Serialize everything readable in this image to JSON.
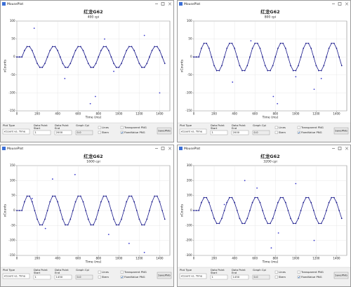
{
  "windows": [
    {
      "title": "MousePlot",
      "chart_data": {
        "type": "line",
        "title": "红龙G62",
        "subtitle": "400 cpi",
        "xlabel": "Time (ms)",
        "ylabel": "xCounts",
        "xlim": [
          0,
          1500
        ],
        "xticks": [
          0,
          200,
          400,
          600,
          800,
          1000,
          1200,
          1400
        ],
        "ylim": [
          -150,
          100
        ],
        "yticks": [
          -150,
          -100,
          -50,
          0,
          50,
          100
        ],
        "grid": true,
        "series": [
          {
            "color": "#1a1a8c",
            "markers": true,
            "x": [
              0,
              25,
              50,
              75,
              100,
              125,
              150,
              175,
              200,
              225,
              250,
              275,
              300,
              325,
              350,
              375,
              400,
              425,
              450,
              475,
              500,
              525,
              550,
              575,
              600,
              625,
              650,
              675,
              700,
              725,
              750,
              775,
              800,
              825,
              850,
              875,
              900,
              925,
              950,
              975,
              1000,
              1025,
              1050,
              1075,
              1100,
              1125,
              1150,
              1175,
              1200,
              1225,
              1250,
              1275,
              1300,
              1325,
              1350,
              1375,
              1400,
              1425,
              1450
            ],
            "values": [
              0,
              0,
              0,
              18,
              29,
              29,
              18,
              0,
              -18,
              -29,
              -29,
              -18,
              0,
              18,
              29,
              29,
              18,
              0,
              -18,
              -29,
              -29,
              -18,
              0,
              18,
              29,
              29,
              18,
              0,
              -18,
              -29,
              -29,
              -18,
              0,
              18,
              29,
              29,
              18,
              0,
              -18,
              -29,
              -29,
              -18,
              0,
              18,
              29,
              29,
              18,
              0,
              -18,
              -29,
              -29,
              -18,
              0,
              18,
              29,
              29,
              18,
              0,
              -18
            ]
          },
          {
            "color": "#3a3acc",
            "markers_only": true,
            "x": [
              170,
              720,
              770,
              1250,
              1400,
              950,
              470,
              860
            ],
            "values": [
              80,
              -130,
              -110,
              60,
              -100,
              -40,
              -60,
              50
            ]
          }
        ]
      },
      "controls": {
        "plot_type_label": "Plot Type",
        "plot_type": "xCount vs. Time",
        "start_label": "Data Point",
        "start_sub": "Start",
        "start": "1",
        "end_label": "Data Point",
        "end_sub": "End",
        "end": "2000",
        "cpi_label": "Graph Cpi",
        "cpi": "0.0",
        "lines": "Lines",
        "stem": "Stem",
        "transparent": "Transparent PNG",
        "fixed": "FixedValue PNG",
        "save": "SavePNG"
      }
    },
    {
      "title": "MousePlot",
      "chart_data": {
        "type": "line",
        "title": "红龙G62",
        "subtitle": "800 cpi",
        "xlabel": "Time (ms)",
        "ylabel": "xCounts",
        "xlim": [
          0,
          1500
        ],
        "xticks": [
          0,
          200,
          400,
          600,
          800,
          1000,
          1200,
          1400
        ],
        "ylim": [
          -150,
          100
        ],
        "yticks": [
          -150,
          -100,
          -50,
          0,
          50,
          100
        ],
        "grid": true,
        "series": [
          {
            "color": "#1a1a8c",
            "markers": true,
            "x": [
              0,
              25,
              50,
              75,
              100,
              125,
              150,
              175,
              200,
              225,
              250,
              275,
              300,
              325,
              350,
              375,
              400,
              425,
              450,
              475,
              500,
              525,
              550,
              575,
              600,
              625,
              650,
              675,
              700,
              725,
              750,
              775,
              800,
              825,
              850,
              875,
              900,
              925,
              950,
              975,
              1000,
              1025,
              1050,
              1075,
              1100,
              1125,
              1150,
              1175,
              1200,
              1225,
              1250,
              1275,
              1300,
              1325,
              1350,
              1375,
              1400,
              1425,
              1450
            ],
            "values": [
              0,
              0,
              0,
              24,
              38,
              38,
              24,
              0,
              -24,
              -38,
              -38,
              -24,
              0,
              24,
              38,
              38,
              24,
              0,
              -24,
              -38,
              -38,
              -24,
              0,
              24,
              38,
              38,
              24,
              0,
              -24,
              -38,
              -38,
              -24,
              0,
              24,
              38,
              38,
              24,
              0,
              -24,
              -38,
              -38,
              -24,
              0,
              24,
              38,
              38,
              24,
              0,
              -24,
              -38,
              -38,
              -24,
              0,
              24,
              38,
              38,
              24,
              0,
              -24
            ]
          },
          {
            "color": "#3a3acc",
            "markers_only": true,
            "x": [
              380,
              780,
              820,
              1180,
              1250,
              1000,
              560
            ],
            "values": [
              -70,
              -110,
              -130,
              -90,
              -60,
              -55,
              45
            ]
          }
        ]
      },
      "controls": {
        "plot_type_label": "Plot Type",
        "plot_type": "xCount vs. Time",
        "start_label": "Data Point",
        "start_sub": "Start",
        "start": "1",
        "end_label": "Data Point",
        "end_sub": "End",
        "end": "2000",
        "cpi_label": "Graph Cpi",
        "cpi": "0.0",
        "lines": "Lines",
        "stem": "Stem",
        "transparent": "Transparent PNG",
        "fixed": "FixedValue PNG",
        "save": "SavePNG"
      }
    },
    {
      "title": "MousePlot",
      "chart_data": {
        "type": "line",
        "title": "红龙G62",
        "subtitle": "1600 cpi",
        "xlabel": "Time (ms)",
        "ylabel": "xCounts",
        "xlim": [
          0,
          1500
        ],
        "xticks": [
          0,
          200,
          400,
          600,
          800,
          1000,
          1200,
          1400
        ],
        "ylim": [
          -150,
          150
        ],
        "yticks": [
          -150,
          -100,
          -50,
          0,
          50,
          100,
          150
        ],
        "grid": true,
        "series": [
          {
            "color": "#1a1a8c",
            "markers": true,
            "x": [
              0,
              25,
              50,
              75,
              100,
              125,
              150,
              175,
              200,
              225,
              250,
              275,
              300,
              325,
              350,
              375,
              400,
              425,
              450,
              475,
              500,
              525,
              550,
              575,
              600,
              625,
              650,
              675,
              700,
              725,
              750,
              775,
              800,
              825,
              850,
              875,
              900,
              925,
              950,
              975,
              1000,
              1025,
              1050,
              1075,
              1100,
              1125,
              1150,
              1175,
              1200,
              1225,
              1250,
              1275,
              1300,
              1325,
              1350,
              1375,
              1400,
              1425,
              1450
            ],
            "values": [
              0,
              0,
              0,
              29,
              48,
              48,
              29,
              0,
              -29,
              -48,
              -48,
              -29,
              0,
              29,
              48,
              48,
              29,
              0,
              -29,
              -48,
              -48,
              -29,
              0,
              29,
              48,
              48,
              29,
              0,
              -29,
              -48,
              -48,
              -29,
              0,
              29,
              48,
              48,
              29,
              0,
              -29,
              -48,
              -48,
              -29,
              0,
              29,
              48,
              48,
              29,
              0,
              -29,
              -48,
              -48,
              -29,
              0,
              29,
              48,
              48,
              29,
              0,
              -29
            ]
          },
          {
            "color": "#3a3acc",
            "markers_only": true,
            "x": [
              350,
              570,
              280,
              1100,
              1250,
              900,
              150
            ],
            "values": [
              105,
              120,
              -60,
              -110,
              -140,
              -80,
              40
            ]
          }
        ]
      },
      "controls": {
        "plot_type_label": "Plot Type",
        "plot_type": "xCount vs. Time",
        "start_label": "Data Point",
        "start_sub": "Start",
        "start": "1",
        "end_label": "Data Point",
        "end_sub": "End",
        "end": "1450",
        "cpi_label": "Graph Cpi",
        "cpi": "0.0",
        "lines": "Lines",
        "stem": "Stem",
        "transparent": "Transparent PNG",
        "fixed": "FixedValue PNG",
        "save": "SavePNG"
      }
    },
    {
      "title": "MousePlot",
      "chart_data": {
        "type": "line",
        "title": "红龙G62",
        "subtitle": "3200 cpi",
        "xlabel": "Time (ms)",
        "ylabel": "xCounts",
        "xlim": [
          0,
          1500
        ],
        "xticks": [
          0,
          200,
          400,
          600,
          800,
          1000,
          1200,
          1400
        ],
        "ylim": [
          -300,
          300
        ],
        "yticks": [
          -300,
          -200,
          -100,
          0,
          100,
          200,
          300
        ],
        "grid": true,
        "series": [
          {
            "color": "#1a1a8c",
            "markers": true,
            "x": [
              0,
              25,
              50,
              75,
              100,
              125,
              150,
              175,
              200,
              225,
              250,
              275,
              300,
              325,
              350,
              375,
              400,
              425,
              450,
              475,
              500,
              525,
              550,
              575,
              600,
              625,
              650,
              675,
              700,
              725,
              750,
              775,
              800,
              825,
              850,
              875,
              900,
              925,
              950,
              975,
              1000,
              1025,
              1050,
              1075,
              1100,
              1125,
              1150,
              1175,
              1200,
              1225,
              1250,
              1275,
              1300,
              1325,
              1350,
              1375,
              1400,
              1425,
              1450
            ],
            "values": [
              0,
              0,
              0,
              53,
              86,
              86,
              53,
              0,
              -53,
              -86,
              -86,
              -53,
              0,
              53,
              86,
              86,
              53,
              0,
              -53,
              -86,
              -86,
              -53,
              0,
              53,
              86,
              86,
              53,
              0,
              -53,
              -86,
              -86,
              -53,
              0,
              53,
              86,
              86,
              53,
              0,
              -53,
              -86,
              -86,
              -53,
              0,
              53,
              86,
              86,
              53,
              0,
              -53,
              -86,
              -86,
              -53,
              0,
              53,
              86,
              86,
              53,
              0,
              -53
            ]
          },
          {
            "color": "#3a3acc",
            "markers_only": true,
            "x": [
              500,
              760,
              830,
              1000,
              1180,
              300,
              620
            ],
            "values": [
              200,
              -250,
              -150,
              180,
              -200,
              40,
              150
            ]
          }
        ]
      },
      "controls": {
        "plot_type_label": "Plot Type",
        "plot_type": "xCount vs. Time",
        "start_label": "Data Point",
        "start_sub": "Start",
        "start": "1",
        "end_label": "Data Point",
        "end_sub": "End",
        "end": "1450",
        "cpi_label": "Graph Cpi",
        "cpi": "0.0",
        "lines": "Lines",
        "stem": "Stem",
        "transparent": "Transparent PNG",
        "fixed": "FixedValue PNG",
        "save": "SavePNG"
      }
    }
  ]
}
